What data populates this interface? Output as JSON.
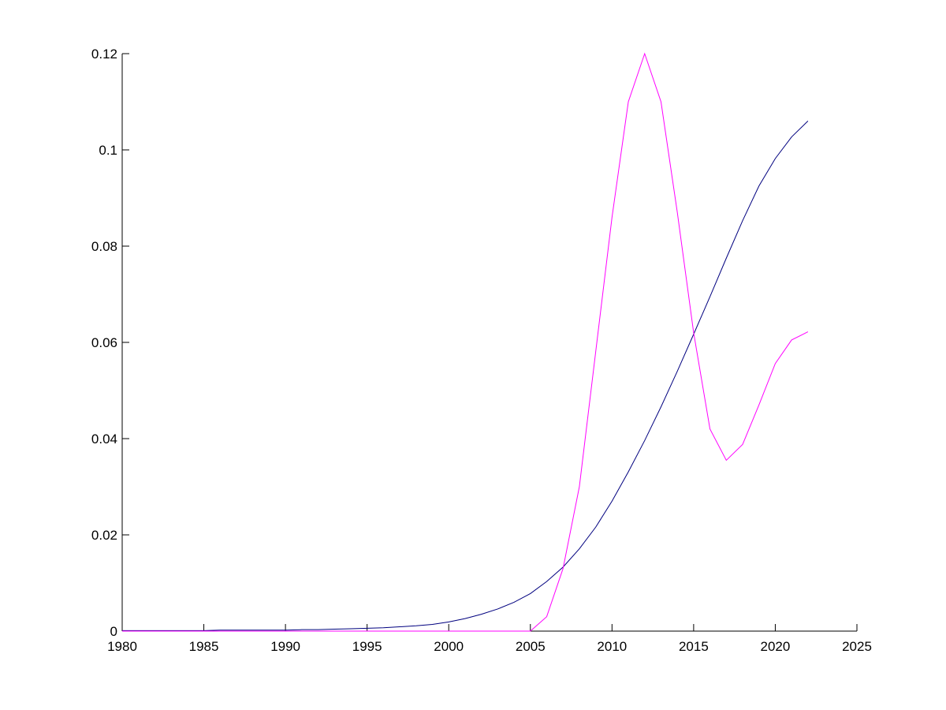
{
  "chart_data": {
    "type": "line",
    "x": [
      1980,
      1981,
      1982,
      1983,
      1984,
      1985,
      1986,
      1987,
      1988,
      1989,
      1990,
      1991,
      1992,
      1993,
      1994,
      1995,
      1996,
      1997,
      1998,
      1999,
      2000,
      2001,
      2002,
      2003,
      2004,
      2005,
      2006,
      2007,
      2008,
      2009,
      2010,
      2011,
      2012,
      2013,
      2014,
      2015,
      2016,
      2017,
      2018,
      2019,
      2020,
      2021,
      2022
    ],
    "series": [
      {
        "color": "#00007f",
        "values": [
          0.0001,
          0.0001,
          0.0001,
          0.0001,
          0.0001,
          0.0001,
          0.0002,
          0.0002,
          0.0002,
          0.0002,
          0.0002,
          0.0003,
          0.0003,
          0.0004,
          0.0005,
          0.0006,
          0.0007,
          0.0009,
          0.0011,
          0.0014,
          0.0019,
          0.0026,
          0.0035,
          0.0046,
          0.006,
          0.0078,
          0.0103,
          0.0133,
          0.0171,
          0.0216,
          0.027,
          0.0331,
          0.0396,
          0.0466,
          0.054,
          0.0617,
          0.0695,
          0.0775,
          0.0853,
          0.0925,
          0.0982,
          0.1027,
          0.106
        ]
      },
      {
        "color": "#ff00ff",
        "values": [
          0,
          0,
          0,
          0,
          0,
          0,
          0,
          0,
          0,
          0,
          0,
          0,
          0,
          0,
          0,
          0,
          0,
          0,
          0,
          0,
          0,
          0,
          0,
          0,
          0,
          0,
          0.003,
          0.013,
          0.03,
          0.058,
          0.086,
          0.11,
          0.12,
          0.11,
          0.087,
          0.062,
          0.042,
          0.0355,
          0.0388,
          0.047,
          0.0556,
          0.0605,
          0.0622
        ]
      }
    ],
    "xlim": [
      1980,
      2025
    ],
    "xticks": [
      1980,
      1985,
      1990,
      1995,
      2000,
      2005,
      2010,
      2015,
      2020,
      2025
    ],
    "ylim": [
      0,
      0.12
    ],
    "yticks": [
      0,
      0.02,
      0.04,
      0.06,
      0.08,
      0.1,
      0.12
    ]
  }
}
